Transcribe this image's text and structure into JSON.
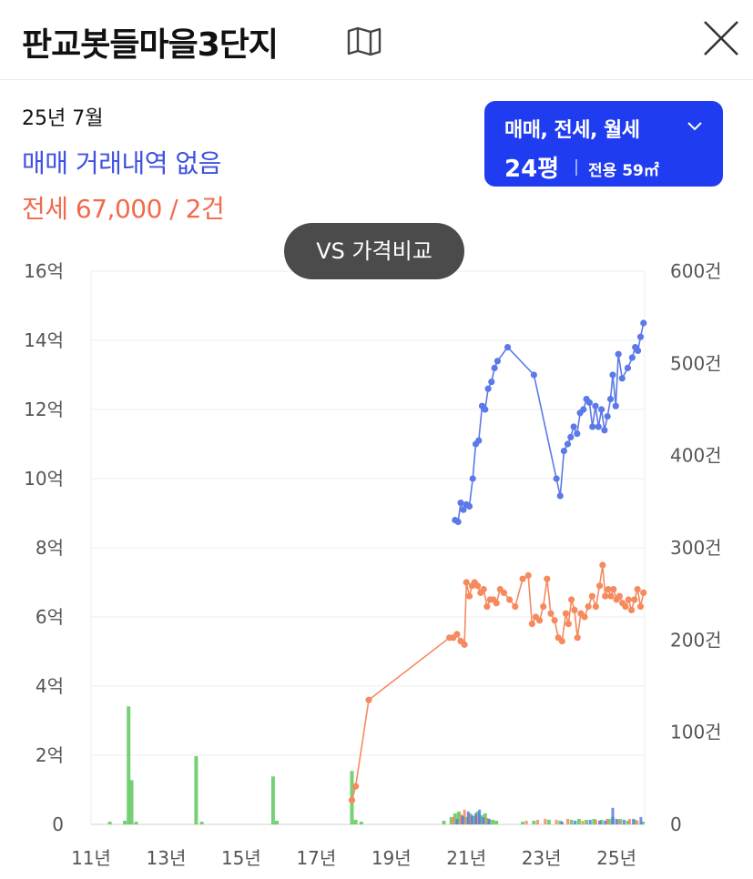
{
  "header": {
    "title": "판교봇들마을3단지"
  },
  "summary": {
    "date": "25년 7월",
    "sale_text": "매매 거래내역 없음",
    "jeonse_text": "전세 67,000 / 2건"
  },
  "filter": {
    "types": "매매, 전세, 월세",
    "area": "24평",
    "detail": "전용 59㎡"
  },
  "vs_button": "VS 가격비교",
  "colors": {
    "sale": "#5b79e8",
    "jeonse": "#f58a5f",
    "volume": "#5cc95c",
    "filter_bg": "#1f3cf0"
  },
  "chart_data": {
    "type": "line",
    "x_ticks": [
      "11년",
      "13년",
      "15년",
      "17년",
      "19년",
      "21년",
      "23년",
      "25년"
    ],
    "x_range": [
      2011.0,
      2025.75
    ],
    "y_left_ticks": [
      "0",
      "2억",
      "4억",
      "6억",
      "8억",
      "10억",
      "12억",
      "14억",
      "16억"
    ],
    "y_left_range": [
      0,
      16
    ],
    "y_right_ticks": [
      "0",
      "100건",
      "200건",
      "300건",
      "400건",
      "500건",
      "600건"
    ],
    "y_right_range": [
      0,
      600
    ],
    "grid": true,
    "series": [
      {
        "key": "sale",
        "points": [
          [
            2020.7,
            8.8
          ],
          [
            2020.78,
            8.75
          ],
          [
            2020.85,
            9.3
          ],
          [
            2020.92,
            9.1
          ],
          [
            2021.0,
            9.25
          ],
          [
            2021.08,
            9.2
          ],
          [
            2021.17,
            10.0
          ],
          [
            2021.25,
            11.0
          ],
          [
            2021.33,
            11.1
          ],
          [
            2021.42,
            12.1
          ],
          [
            2021.5,
            12.0
          ],
          [
            2021.58,
            12.6
          ],
          [
            2021.67,
            12.8
          ],
          [
            2021.75,
            13.2
          ],
          [
            2021.83,
            13.4
          ],
          [
            2022.1,
            13.8
          ],
          [
            2022.8,
            13.0
          ],
          [
            2023.4,
            10.0
          ],
          [
            2023.5,
            9.5
          ],
          [
            2023.6,
            10.8
          ],
          [
            2023.7,
            11.0
          ],
          [
            2023.78,
            11.2
          ],
          [
            2023.86,
            11.5
          ],
          [
            2023.95,
            11.3
          ],
          [
            2024.03,
            11.9
          ],
          [
            2024.12,
            12.0
          ],
          [
            2024.2,
            12.3
          ],
          [
            2024.28,
            12.2
          ],
          [
            2024.36,
            11.5
          ],
          [
            2024.44,
            12.1
          ],
          [
            2024.52,
            11.5
          ],
          [
            2024.6,
            12.0
          ],
          [
            2024.68,
            11.4
          ],
          [
            2024.76,
            11.8
          ],
          [
            2024.84,
            12.3
          ],
          [
            2024.9,
            13.0
          ],
          [
            2024.98,
            12.1
          ],
          [
            2025.05,
            13.6
          ],
          [
            2025.15,
            12.9
          ],
          [
            2025.3,
            13.2
          ],
          [
            2025.42,
            13.5
          ],
          [
            2025.5,
            13.8
          ],
          [
            2025.57,
            13.7
          ],
          [
            2025.64,
            14.1
          ],
          [
            2025.72,
            14.5
          ]
        ]
      },
      {
        "key": "jeonse",
        "points": [
          [
            2017.95,
            0.7
          ],
          [
            2018.05,
            1.1
          ],
          [
            2018.4,
            3.6
          ],
          [
            2020.55,
            5.4
          ],
          [
            2020.65,
            5.4
          ],
          [
            2020.75,
            5.5
          ],
          [
            2020.85,
            5.3
          ],
          [
            2020.95,
            5.2
          ],
          [
            2021.0,
            7.0
          ],
          [
            2021.08,
            6.6
          ],
          [
            2021.15,
            6.9
          ],
          [
            2021.22,
            7.0
          ],
          [
            2021.3,
            6.9
          ],
          [
            2021.38,
            6.7
          ],
          [
            2021.46,
            6.8
          ],
          [
            2021.55,
            6.3
          ],
          [
            2021.63,
            6.5
          ],
          [
            2021.72,
            6.5
          ],
          [
            2021.8,
            6.4
          ],
          [
            2021.9,
            6.8
          ],
          [
            2022.0,
            6.7
          ],
          [
            2022.15,
            6.5
          ],
          [
            2022.3,
            6.3
          ],
          [
            2022.5,
            7.1
          ],
          [
            2022.65,
            7.2
          ],
          [
            2022.75,
            5.8
          ],
          [
            2022.85,
            6.0
          ],
          [
            2022.95,
            5.9
          ],
          [
            2023.05,
            6.3
          ],
          [
            2023.15,
            7.1
          ],
          [
            2023.25,
            6.1
          ],
          [
            2023.35,
            5.9
          ],
          [
            2023.45,
            5.4
          ],
          [
            2023.55,
            5.3
          ],
          [
            2023.65,
            6.1
          ],
          [
            2023.72,
            5.8
          ],
          [
            2023.8,
            6.5
          ],
          [
            2023.88,
            6.2
          ],
          [
            2023.96,
            5.4
          ],
          [
            2024.05,
            6.1
          ],
          [
            2024.15,
            6.0
          ],
          [
            2024.25,
            6.3
          ],
          [
            2024.35,
            6.6
          ],
          [
            2024.45,
            6.3
          ],
          [
            2024.55,
            6.9
          ],
          [
            2024.63,
            7.5
          ],
          [
            2024.7,
            6.6
          ],
          [
            2024.78,
            6.8
          ],
          [
            2024.85,
            6.6
          ],
          [
            2024.92,
            6.8
          ],
          [
            2025.0,
            6.5
          ],
          [
            2025.08,
            6.6
          ],
          [
            2025.16,
            6.4
          ],
          [
            2025.24,
            6.3
          ],
          [
            2025.32,
            6.5
          ],
          [
            2025.4,
            6.2
          ],
          [
            2025.48,
            6.5
          ],
          [
            2025.56,
            6.8
          ],
          [
            2025.64,
            6.3
          ],
          [
            2025.72,
            6.7
          ]
        ]
      },
      {
        "key": "volume",
        "type": "bar",
        "axis": "right",
        "points": [
          [
            2011.5,
            3
          ],
          [
            2011.9,
            4
          ],
          [
            2012.0,
            128
          ],
          [
            2012.08,
            48
          ],
          [
            2012.2,
            3
          ],
          [
            2013.8,
            74
          ],
          [
            2013.95,
            3
          ],
          [
            2015.85,
            52
          ],
          [
            2015.95,
            4
          ],
          [
            2017.95,
            58
          ],
          [
            2018.05,
            5
          ],
          [
            2018.2,
            3
          ],
          [
            2020.4,
            4
          ],
          [
            2020.6,
            8
          ],
          [
            2020.7,
            12
          ],
          [
            2020.8,
            14
          ],
          [
            2020.9,
            10
          ],
          [
            2021.0,
            8
          ],
          [
            2021.1,
            12
          ],
          [
            2021.2,
            9
          ],
          [
            2021.3,
            14
          ],
          [
            2021.4,
            10
          ],
          [
            2021.5,
            12
          ],
          [
            2021.6,
            6
          ],
          [
            2021.7,
            5
          ],
          [
            2021.8,
            4
          ],
          [
            2022.5,
            3
          ],
          [
            2022.8,
            4
          ],
          [
            2023.2,
            5
          ],
          [
            2023.5,
            4
          ],
          [
            2023.8,
            5
          ],
          [
            2024.0,
            6
          ],
          [
            2024.2,
            5
          ],
          [
            2024.4,
            6
          ],
          [
            2024.6,
            5
          ],
          [
            2024.8,
            6
          ],
          [
            2024.9,
            8
          ],
          [
            2025.1,
            6
          ],
          [
            2025.3,
            4
          ],
          [
            2025.5,
            5
          ],
          [
            2025.7,
            3
          ]
        ]
      },
      {
        "key": "volume_sale",
        "type": "bar",
        "axis": "right",
        "points": [
          [
            2020.75,
            6
          ],
          [
            2020.9,
            9
          ],
          [
            2021.05,
            14
          ],
          [
            2021.15,
            10
          ],
          [
            2021.25,
            12
          ],
          [
            2021.35,
            16
          ],
          [
            2021.45,
            8
          ],
          [
            2021.6,
            6
          ],
          [
            2023.55,
            3
          ],
          [
            2023.9,
            4
          ],
          [
            2024.3,
            5
          ],
          [
            2024.55,
            4
          ],
          [
            2024.7,
            4
          ],
          [
            2024.9,
            18
          ],
          [
            2025.0,
            6
          ],
          [
            2025.2,
            5
          ],
          [
            2025.45,
            6
          ],
          [
            2025.65,
            8
          ]
        ]
      },
      {
        "key": "volume_jeonse",
        "type": "bar",
        "axis": "right",
        "points": [
          [
            2020.65,
            8
          ],
          [
            2020.85,
            11
          ],
          [
            2020.95,
            16
          ],
          [
            2021.12,
            10
          ],
          [
            2021.32,
            9
          ],
          [
            2021.55,
            7
          ],
          [
            2022.6,
            4
          ],
          [
            2022.9,
            5
          ],
          [
            2023.1,
            6
          ],
          [
            2023.4,
            5
          ],
          [
            2023.7,
            6
          ],
          [
            2024.1,
            4
          ],
          [
            2024.45,
            5
          ],
          [
            2024.75,
            6
          ],
          [
            2025.05,
            5
          ],
          [
            2025.35,
            6
          ],
          [
            2025.55,
            4
          ]
        ]
      }
    ]
  }
}
